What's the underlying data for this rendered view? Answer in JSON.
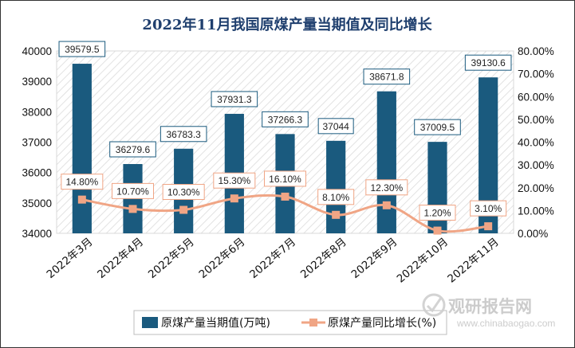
{
  "chart_data": {
    "type": "bar+line",
    "title": "2022年11月我国原煤产量当期值及同比增长",
    "categories": [
      "2022年3月",
      "2022年4月",
      "2022年5月",
      "2022年6月",
      "2022年7月",
      "2022年8月",
      "2022年9月",
      "2022年10月",
      "2022年11月"
    ],
    "series": [
      {
        "name": "原煤产量当期值(万吨)",
        "kind": "bar",
        "axis": "left",
        "values": [
          39579.5,
          36279.6,
          36783.3,
          37931.3,
          37266.3,
          37044,
          38671.8,
          37009.5,
          39130.6
        ],
        "labels": [
          "39579.5",
          "36279.6",
          "36783.3",
          "37931.3",
          "37266.3",
          "37044",
          "38671.8",
          "37009.5",
          "39130.6"
        ],
        "color": "#1a5a7e"
      },
      {
        "name": "原煤产量同比增长(%)",
        "kind": "line",
        "axis": "right",
        "values": [
          14.8,
          10.7,
          10.3,
          15.3,
          16.1,
          8.1,
          12.3,
          1.2,
          3.1
        ],
        "labels": [
          "14.80%",
          "10.70%",
          "10.30%",
          "15.30%",
          "16.10%",
          "8.10%",
          "12.30%",
          "1.20%",
          "3.10%"
        ],
        "color": "#f0a585"
      }
    ],
    "y_left": {
      "min": 34000,
      "max": 40000,
      "ticks": [
        "34000",
        "35000",
        "36000",
        "37000",
        "38000",
        "39000",
        "40000"
      ]
    },
    "y_right": {
      "min": 0,
      "max": 80,
      "ticks": [
        "0.00%",
        "10.00%",
        "20.00%",
        "30.00%",
        "40.00%",
        "50.00%",
        "60.00%",
        "70.00%",
        "80.00%"
      ]
    },
    "legend_position": "bottom",
    "grid": false
  },
  "watermark": {
    "text": "观研报告网",
    "url": "www.chinabaogao.com"
  }
}
